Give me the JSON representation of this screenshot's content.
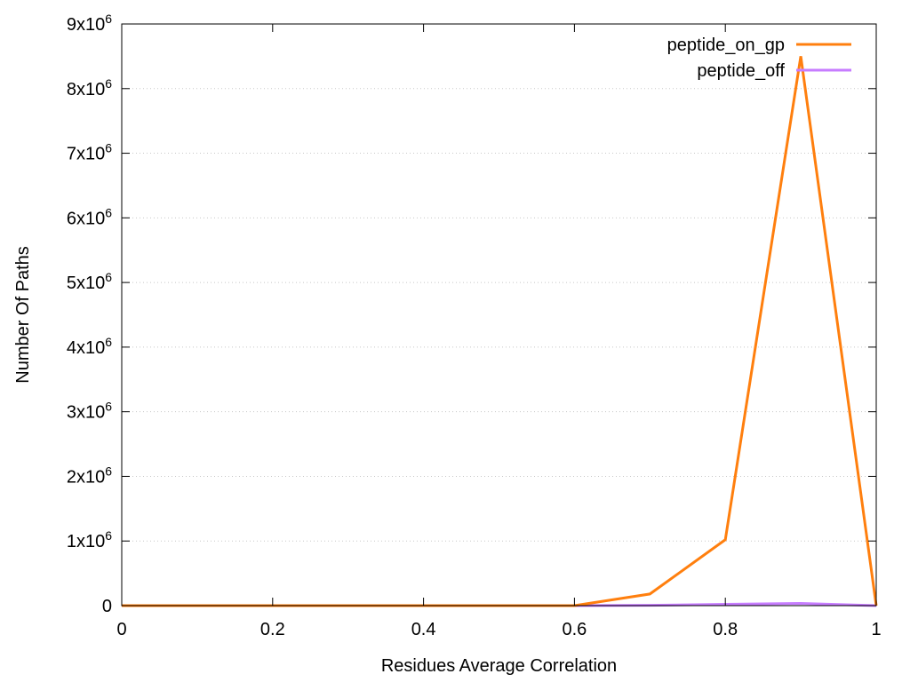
{
  "chart_data": {
    "type": "line",
    "xlabel": "Residues Average Correlation",
    "ylabel": "Number Of Paths",
    "xlim": [
      0,
      1
    ],
    "ylim": [
      0,
      9000000
    ],
    "x_ticks": [
      {
        "value": 0,
        "label": "0"
      },
      {
        "value": 0.2,
        "label": "0.2"
      },
      {
        "value": 0.4,
        "label": "0.4"
      },
      {
        "value": 0.6,
        "label": "0.6"
      },
      {
        "value": 0.8,
        "label": "0.8"
      },
      {
        "value": 1,
        "label": "1"
      }
    ],
    "y_ticks": [
      {
        "value": 0,
        "mantissa": "0",
        "exponent": ""
      },
      {
        "value": 1000000,
        "mantissa": "1x10",
        "exponent": "6"
      },
      {
        "value": 2000000,
        "mantissa": "2x10",
        "exponent": "6"
      },
      {
        "value": 3000000,
        "mantissa": "3x10",
        "exponent": "6"
      },
      {
        "value": 4000000,
        "mantissa": "4x10",
        "exponent": "6"
      },
      {
        "value": 5000000,
        "mantissa": "5x10",
        "exponent": "6"
      },
      {
        "value": 6000000,
        "mantissa": "6x10",
        "exponent": "6"
      },
      {
        "value": 7000000,
        "mantissa": "7x10",
        "exponent": "6"
      },
      {
        "value": 8000000,
        "mantissa": "8x10",
        "exponent": "6"
      },
      {
        "value": 9000000,
        "mantissa": "9x10",
        "exponent": "6"
      }
    ],
    "grid": "horizontal dotted",
    "legend_position": "top-right",
    "x": [
      0,
      0.1,
      0.2,
      0.3,
      0.4,
      0.5,
      0.6,
      0.7,
      0.8,
      0.9,
      1.0
    ],
    "series": [
      {
        "name": "peptide_on_gp",
        "color": "#ff7f0e",
        "values": [
          0,
          0,
          0,
          0,
          0,
          0,
          0,
          180000,
          1020000,
          8500000,
          0
        ]
      },
      {
        "name": "peptide_off",
        "color": "#c77dff",
        "values": [
          0,
          0,
          0,
          0,
          0,
          0,
          0,
          5000,
          20000,
          35000,
          0
        ]
      }
    ]
  }
}
